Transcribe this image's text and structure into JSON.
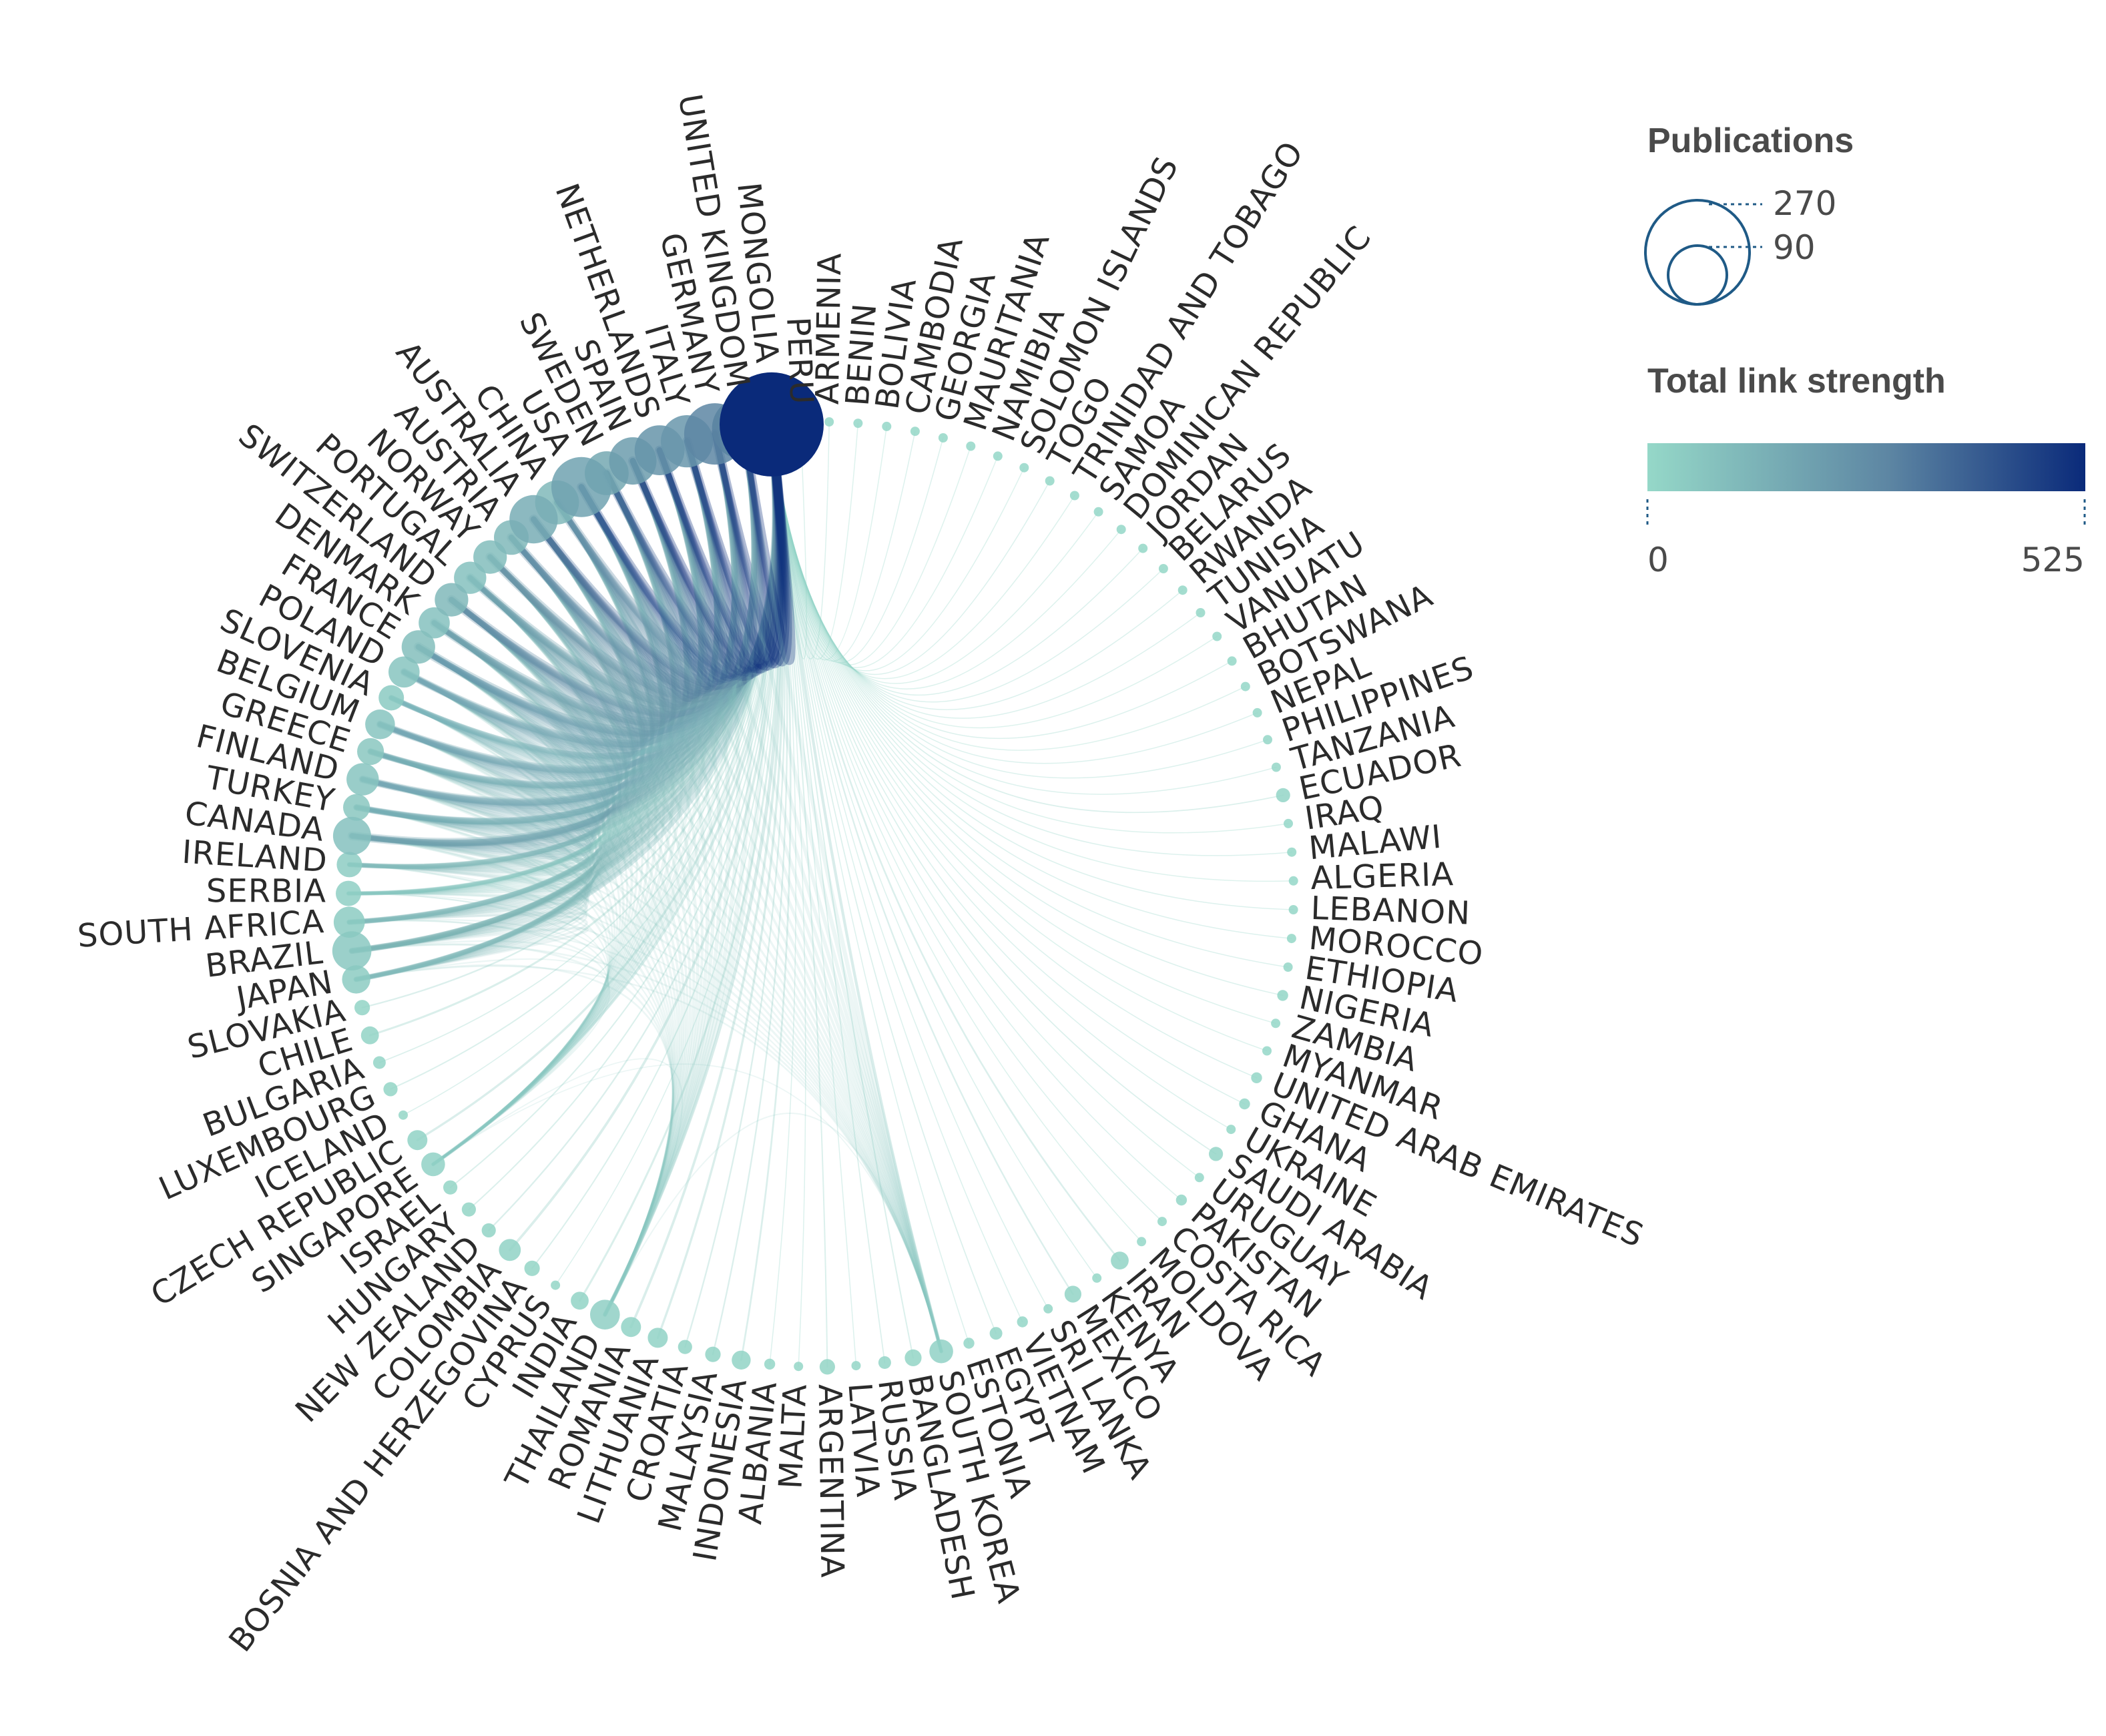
{
  "legend": {
    "size_title": "Publications",
    "size_values": [
      "270",
      "90"
    ],
    "color_title": "Total link strength",
    "color_min": "0",
    "color_max": "525",
    "color_low": "#95d8c8",
    "color_mid": "#5d86a3",
    "color_high": "#0a2a7a"
  },
  "chart_data": {
    "type": "chord",
    "countries": [
      {
        "name": "MONGOLIA",
        "publications": 270,
        "strength": 525
      },
      {
        "name": "PERU",
        "publications": 1,
        "strength": 3
      },
      {
        "name": "ARMENIA",
        "publications": 1,
        "strength": 4
      },
      {
        "name": "BENIN",
        "publications": 1,
        "strength": 3
      },
      {
        "name": "BOLIVIA",
        "publications": 1,
        "strength": 3
      },
      {
        "name": "CAMBODIA",
        "publications": 1,
        "strength": 4
      },
      {
        "name": "GEORGIA",
        "publications": 1,
        "strength": 4
      },
      {
        "name": "MAURITANIA",
        "publications": 1,
        "strength": 3
      },
      {
        "name": "NAMIBIA",
        "publications": 1,
        "strength": 3
      },
      {
        "name": "SOLOMON ISLANDS",
        "publications": 1,
        "strength": 3
      },
      {
        "name": "TOGO",
        "publications": 2,
        "strength": 5
      },
      {
        "name": "TRINIDAD AND TOBAGO",
        "publications": 1,
        "strength": 3
      },
      {
        "name": "SAMOA",
        "publications": 1,
        "strength": 3
      },
      {
        "name": "DOMINICAN REPUBLIC",
        "publications": 1,
        "strength": 3
      },
      {
        "name": "JORDAN",
        "publications": 1,
        "strength": 4
      },
      {
        "name": "BELARUS",
        "publications": 1,
        "strength": 4
      },
      {
        "name": "RWANDA",
        "publications": 1,
        "strength": 4
      },
      {
        "name": "TUNISIA",
        "publications": 2,
        "strength": 5
      },
      {
        "name": "VANUATU",
        "publications": 1,
        "strength": 3
      },
      {
        "name": "BHUTAN",
        "publications": 2,
        "strength": 5
      },
      {
        "name": "BOTSWANA",
        "publications": 1,
        "strength": 3
      },
      {
        "name": "NEPAL",
        "publications": 1,
        "strength": 4
      },
      {
        "name": "PHILIPPINES",
        "publications": 2,
        "strength": 6
      },
      {
        "name": "TANZANIA",
        "publications": 2,
        "strength": 6
      },
      {
        "name": "ECUADOR",
        "publications": 5,
        "strength": 10
      },
      {
        "name": "IRAQ",
        "publications": 1,
        "strength": 3
      },
      {
        "name": "MALAWI",
        "publications": 1,
        "strength": 4
      },
      {
        "name": "ALGERIA",
        "publications": 1,
        "strength": 3
      },
      {
        "name": "LEBANON",
        "publications": 2,
        "strength": 6
      },
      {
        "name": "MOROCCO",
        "publications": 1,
        "strength": 4
      },
      {
        "name": "ETHIOPIA",
        "publications": 2,
        "strength": 6
      },
      {
        "name": "NIGERIA",
        "publications": 3,
        "strength": 8
      },
      {
        "name": "ZAMBIA",
        "publications": 1,
        "strength": 3
      },
      {
        "name": "MYANMAR",
        "publications": 1,
        "strength": 3
      },
      {
        "name": "UNITED ARAB EMIRATES",
        "publications": 3,
        "strength": 8
      },
      {
        "name": "GHANA",
        "publications": 3,
        "strength": 8
      },
      {
        "name": "UKRAINE",
        "publications": 2,
        "strength": 5
      },
      {
        "name": "SAUDI ARABIA",
        "publications": 5,
        "strength": 10
      },
      {
        "name": "URUGUAY",
        "publications": 1,
        "strength": 3
      },
      {
        "name": "PAKISTAN",
        "publications": 3,
        "strength": 8
      },
      {
        "name": "COSTA RICA",
        "publications": 2,
        "strength": 5
      },
      {
        "name": "MOLDOVA",
        "publications": 1,
        "strength": 3
      },
      {
        "name": "IRAN",
        "publications": 8,
        "strength": 15
      },
      {
        "name": "KENYA",
        "publications": 2,
        "strength": 5
      },
      {
        "name": "MEXICO",
        "publications": 7,
        "strength": 14
      },
      {
        "name": "SRI LANKA",
        "publications": 2,
        "strength": 6
      },
      {
        "name": "VIETNAM",
        "publications": 3,
        "strength": 8
      },
      {
        "name": "EGYPT",
        "publications": 4,
        "strength": 10
      },
      {
        "name": "ESTONIA",
        "publications": 3,
        "strength": 8
      },
      {
        "name": "SOUTH KOREA",
        "publications": 14,
        "strength": 25
      },
      {
        "name": "BANGLADESH",
        "publications": 7,
        "strength": 12
      },
      {
        "name": "RUSSIA",
        "publications": 4,
        "strength": 10
      },
      {
        "name": "LATVIA",
        "publications": 2,
        "strength": 6
      },
      {
        "name": "ARGENTINA",
        "publications": 6,
        "strength": 12
      },
      {
        "name": "MALTA",
        "publications": 2,
        "strength": 6
      },
      {
        "name": "ALBANIA",
        "publications": 3,
        "strength": 8
      },
      {
        "name": "INDONESIA",
        "publications": 9,
        "strength": 16
      },
      {
        "name": "MALAYSIA",
        "publications": 6,
        "strength": 14
      },
      {
        "name": "CROATIA",
        "publications": 5,
        "strength": 14
      },
      {
        "name": "LITHUANIA",
        "publications": 10,
        "strength": 20
      },
      {
        "name": "ROMANIA",
        "publications": 10,
        "strength": 22
      },
      {
        "name": "THAILAND",
        "publications": 22,
        "strength": 30
      },
      {
        "name": "INDIA",
        "publications": 8,
        "strength": 18
      },
      {
        "name": "CYPRUS",
        "publications": 2,
        "strength": 6
      },
      {
        "name": "BOSNIA AND HERZEGOVINA",
        "publications": 6,
        "strength": 12
      },
      {
        "name": "COLOMBIA",
        "publications": 12,
        "strength": 22
      },
      {
        "name": "NEW ZEALAND",
        "publications": 5,
        "strength": 14
      },
      {
        "name": "HUNGARY",
        "publications": 5,
        "strength": 12
      },
      {
        "name": "ISRAEL",
        "publications": 5,
        "strength": 12
      },
      {
        "name": "SINGAPORE",
        "publications": 14,
        "strength": 24
      },
      {
        "name": "CZECH REPUBLIC",
        "publications": 10,
        "strength": 20
      },
      {
        "name": "ICELAND",
        "publications": 2,
        "strength": 6
      },
      {
        "name": "LUXEMBOURG",
        "publications": 5,
        "strength": 12
      },
      {
        "name": "BULGARIA",
        "publications": 4,
        "strength": 10
      },
      {
        "name": "CHILE",
        "publications": 8,
        "strength": 18
      },
      {
        "name": "SLOVAKIA",
        "publications": 6,
        "strength": 14
      },
      {
        "name": "JAPAN",
        "publications": 20,
        "strength": 45
      },
      {
        "name": "BRAZIL",
        "publications": 38,
        "strength": 55
      },
      {
        "name": "SOUTH AFRICA",
        "publications": 24,
        "strength": 45
      },
      {
        "name": "SERBIA",
        "publications": 16,
        "strength": 30
      },
      {
        "name": "IRELAND",
        "publications": 16,
        "strength": 40
      },
      {
        "name": "CANADA",
        "publications": 36,
        "strength": 80
      },
      {
        "name": "TURKEY",
        "publications": 18,
        "strength": 60
      },
      {
        "name": "FINLAND",
        "publications": 26,
        "strength": 70
      },
      {
        "name": "GREECE",
        "publications": 18,
        "strength": 60
      },
      {
        "name": "BELGIUM",
        "publications": 22,
        "strength": 70
      },
      {
        "name": "SLOVENIA",
        "publications": 16,
        "strength": 50
      },
      {
        "name": "POLAND",
        "publications": 24,
        "strength": 70
      },
      {
        "name": "FRANCE",
        "publications": 28,
        "strength": 90
      },
      {
        "name": "DENMARK",
        "publications": 24,
        "strength": 80
      },
      {
        "name": "SWITZERLAND",
        "publications": 28,
        "strength": 110
      },
      {
        "name": "PORTUGAL",
        "publications": 26,
        "strength": 80
      },
      {
        "name": "NORWAY",
        "publications": 28,
        "strength": 95
      },
      {
        "name": "AUSTRIA",
        "publications": 30,
        "strength": 110
      },
      {
        "name": "AUSTRALIA",
        "publications": 58,
        "strength": 150
      },
      {
        "name": "CHINA",
        "publications": 48,
        "strength": 110
      },
      {
        "name": "USA",
        "publications": 90,
        "strength": 190
      },
      {
        "name": "SWEDEN",
        "publications": 48,
        "strength": 170
      },
      {
        "name": "SPAIN",
        "publications": 56,
        "strength": 210
      },
      {
        "name": "NETHERLANDS",
        "publications": 62,
        "strength": 240
      },
      {
        "name": "ITALY",
        "publications": 68,
        "strength": 230
      },
      {
        "name": "GERMANY",
        "publications": 94,
        "strength": 290
      },
      {
        "name": "UNITED KINGDOM",
        "publications": 96,
        "strength": 300
      }
    ]
  }
}
